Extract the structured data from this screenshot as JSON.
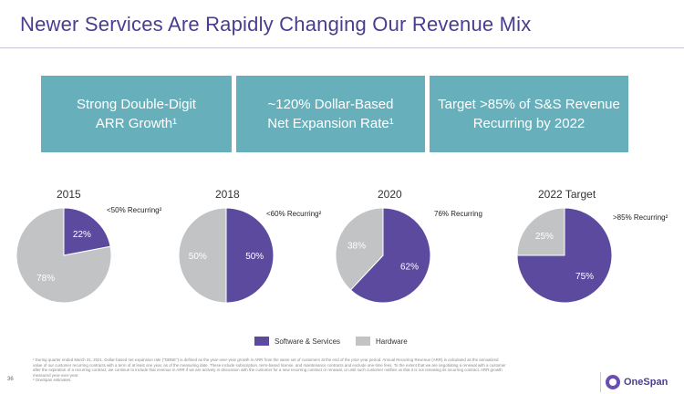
{
  "title": "Newer Services Are Rapidly Changing Our Revenue Mix",
  "boxes": [
    {
      "text": "Strong Double-Digit\nARR Growth¹"
    },
    {
      "text": "~120% Dollar-Based\nNet Expansion Rate¹"
    },
    {
      "text": "Target >85% of S&S Revenue\nRecurring by 2022"
    }
  ],
  "colors": {
    "software": "#5b4a9e",
    "hardware": "#c2c3c5",
    "box": "#67b0bb",
    "title": "#4a3d8f"
  },
  "chart_data": [
    {
      "type": "pie",
      "title": "2015",
      "series": [
        {
          "name": "Software & Services",
          "value": 22
        },
        {
          "name": "Hardware",
          "value": 78
        }
      ],
      "labels": [
        "22%",
        "78%"
      ],
      "callout": "<50% Recurring²"
    },
    {
      "type": "pie",
      "title": "2018",
      "series": [
        {
          "name": "Software & Services",
          "value": 50
        },
        {
          "name": "Hardware",
          "value": 50
        }
      ],
      "labels": [
        "50%",
        "50%"
      ],
      "callout": "<60% Recurring²"
    },
    {
      "type": "pie",
      "title": "2020",
      "series": [
        {
          "name": "Software & Services",
          "value": 62
        },
        {
          "name": "Hardware",
          "value": 38
        }
      ],
      "labels": [
        "62%",
        "38%"
      ],
      "callout": "76% Recurring"
    },
    {
      "type": "pie",
      "title": "2022 Target",
      "series": [
        {
          "name": "Software & Services",
          "value": 75
        },
        {
          "name": "Hardware",
          "value": 25
        }
      ],
      "labels": [
        "75%",
        "25%"
      ],
      "callout": ">85% Recurring²"
    }
  ],
  "legend": {
    "software": "Software & Services",
    "hardware": "Hardware"
  },
  "footnote": "¹ During quarter ended March 31, 2021. Dollar-based net expansion rate (\"DBNE\") is defined as the year-over-year growth in ARR from the same set of customers at the end of the prior year period. Annual Recurring Revenue (ARR) is calculated as the annualized value of our customer recurring contracts with a term of at least one year, as of the measuring date. These include subscription, term-based license, and maintenance contracts and exclude one-time fees. To the extent that we are negotiating a renewal with a customer after the expiration of a recurring contract, we continue to include that revenue in ARR if we are actively in discussion with the customer for a new recurring contract or renewal, or until such customer notifies us that it is not renewing its recurring contract. ARR growth measured year-over-year.\n² OneSpan estimates.",
  "page_number": "36",
  "logo_text": "OneSpan"
}
